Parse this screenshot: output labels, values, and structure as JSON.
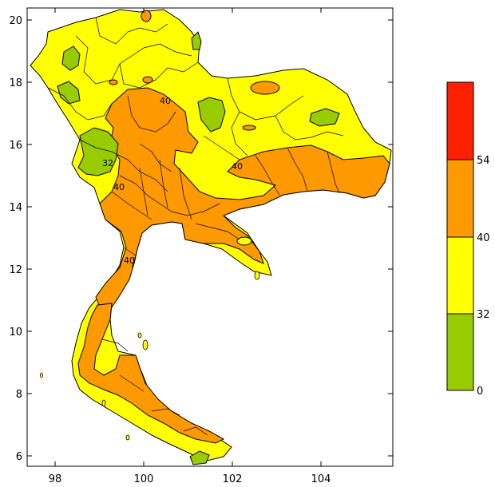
{
  "map": {
    "x_axis": {
      "ticks": [
        "98",
        "100",
        "102",
        "104"
      ]
    },
    "y_axis": {
      "ticks": [
        "20",
        "18",
        "16",
        "14",
        "12",
        "10",
        "8",
        "6"
      ]
    },
    "contour_labels": [
      "40",
      "32",
      "40",
      "40",
      "40"
    ]
  },
  "legend": {
    "labels": [
      "54",
      "40",
      "32",
      "0"
    ],
    "bins": [
      {
        "color": "#ff2000"
      },
      {
        "color": "#ff9900"
      },
      {
        "color": "#ffff00"
      },
      {
        "color": "#99cc00"
      }
    ]
  },
  "colors": {
    "outside_land": "#ffffff",
    "sea": "#ffffff",
    "yellow": "#ffff00",
    "orange": "#ff9900",
    "green": "#99cc00",
    "red": "#ff2000",
    "outline": "#000000"
  }
}
